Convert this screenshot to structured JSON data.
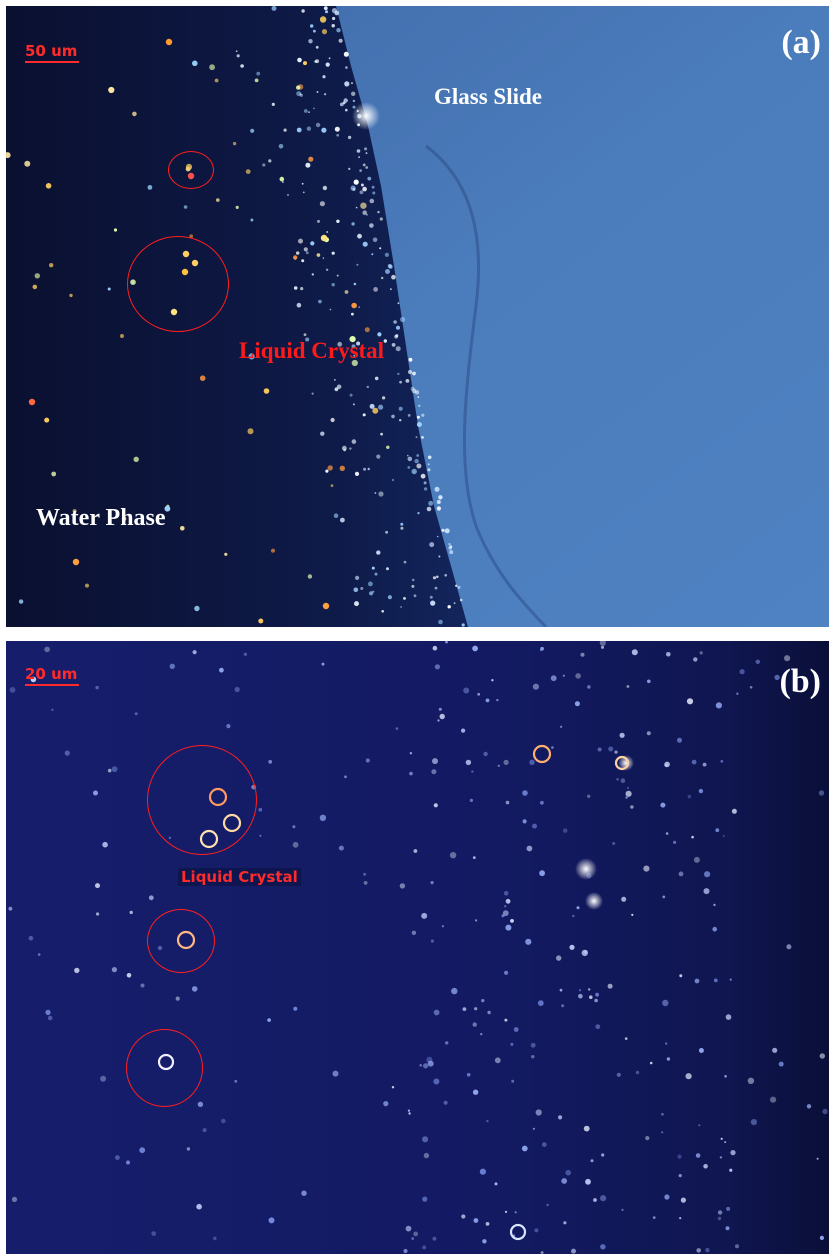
{
  "panel_a": {
    "letter": "(a)",
    "scale_bar": "50 um",
    "labels": {
      "glass": "Glass Slide",
      "lc": "Liquid Crystal",
      "water": "Water Phase"
    }
  },
  "panel_b": {
    "letter": "(b)",
    "scale_bar": "20 um",
    "labels": {
      "lc": "Liquid Crystal"
    }
  },
  "colors": {
    "annotation_red": "#ff1e1e",
    "water_phase": "#0c1236",
    "glass_slide": "#4a78b8",
    "panel_b_background": "#141c6a"
  }
}
